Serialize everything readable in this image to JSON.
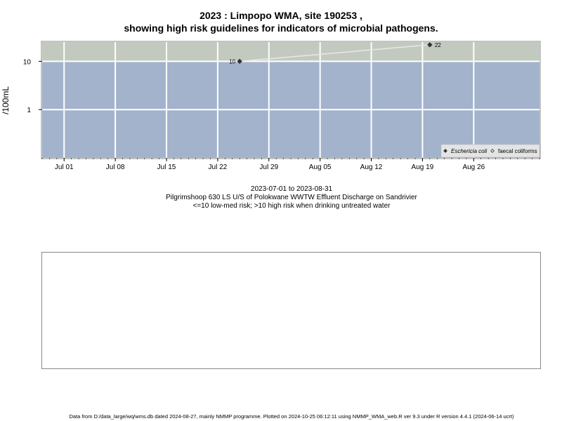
{
  "header": {
    "title_line1": "2023 : Limpopo WMA, site 190253 ,",
    "title_line2": "showing high risk guidelines for indicators of microbial pathogens."
  },
  "subtitle": {
    "date_range": "2023-07-01 to 2023-08-31",
    "site_description": "Pilgrimshoop 630 LS U/S of Polokwane WWTW Effluent Discharge on Sandrivier",
    "risk_note": "<=10 low-med risk; >10 high risk when drinking untreated water"
  },
  "footer": {
    "text": "Data from D:/data_large/wq/wms.db dated 2024-08-27, mainly NMMP programme. Plotted on 2024-10-25 06:12:11 using NMMP_WMA_web.R ver 9.3 under R version 4.4.1 (2024-06-14 ucrt)"
  },
  "chart_data": {
    "type": "scatter",
    "ylabel": "/100mL",
    "yscale": "log",
    "ylim": [
      0.1,
      25
    ],
    "xlim": [
      "2023-06-28",
      "2023-09-04"
    ],
    "x_ticks": [
      {
        "label": "Jul 01",
        "date": "2023-07-01"
      },
      {
        "label": "Jul 08",
        "date": "2023-07-08"
      },
      {
        "label": "Jul 15",
        "date": "2023-07-15"
      },
      {
        "label": "Jul 22",
        "date": "2023-07-22"
      },
      {
        "label": "Jul 29",
        "date": "2023-07-29"
      },
      {
        "label": "Aug 05",
        "date": "2023-08-05"
      },
      {
        "label": "Aug 12",
        "date": "2023-08-12"
      },
      {
        "label": "Aug 19",
        "date": "2023-08-19"
      },
      {
        "label": "Aug 26",
        "date": "2023-08-26"
      }
    ],
    "y_ticks": [
      {
        "label": "1",
        "value": 1
      },
      {
        "label": "10",
        "value": 10
      }
    ],
    "risk_threshold": 10,
    "bands": [
      {
        "range": "<=10",
        "color": "#a3b3cc"
      },
      {
        "range": ">10",
        "color": "#c2cabf"
      }
    ],
    "grid": true,
    "legend_position": "bottom-right",
    "series": [
      {
        "name": "Eschericia coli",
        "marker": "filled-diamond",
        "color": "#333333",
        "points": [
          {
            "date": "2023-07-25",
            "value": 10,
            "label": "10"
          },
          {
            "date": "2023-08-20",
            "value": 22,
            "label": "22"
          }
        ]
      },
      {
        "name": "faecal coliforms",
        "marker": "open-diamond",
        "color": "#333333",
        "points": []
      }
    ]
  }
}
